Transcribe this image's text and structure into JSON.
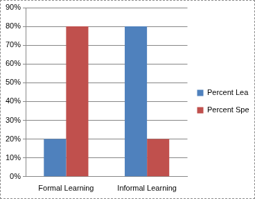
{
  "chart_data": {
    "type": "bar",
    "categories": [
      "Formal Learning",
      "Informal Learning"
    ],
    "series": [
      {
        "name": "Percent Learned",
        "color": "#4f81bd",
        "values": [
          20,
          80
        ]
      },
      {
        "name": "Percent Spent",
        "color": "#c0504d",
        "values": [
          80,
          20
        ]
      }
    ],
    "ylim": [
      0,
      90
    ],
    "yticks": [
      {
        "value": 0,
        "label": "0%"
      },
      {
        "value": 10,
        "label": "10%"
      },
      {
        "value": 20,
        "label": "20%"
      },
      {
        "value": 30,
        "label": "30%"
      },
      {
        "value": 40,
        "label": "40%"
      },
      {
        "value": 50,
        "label": "50%"
      },
      {
        "value": 60,
        "label": "60%"
      },
      {
        "value": 70,
        "label": "70%"
      },
      {
        "value": 80,
        "label": "80%"
      },
      {
        "value": 90,
        "label": "90%"
      }
    ],
    "grid": true,
    "legend": "right"
  }
}
